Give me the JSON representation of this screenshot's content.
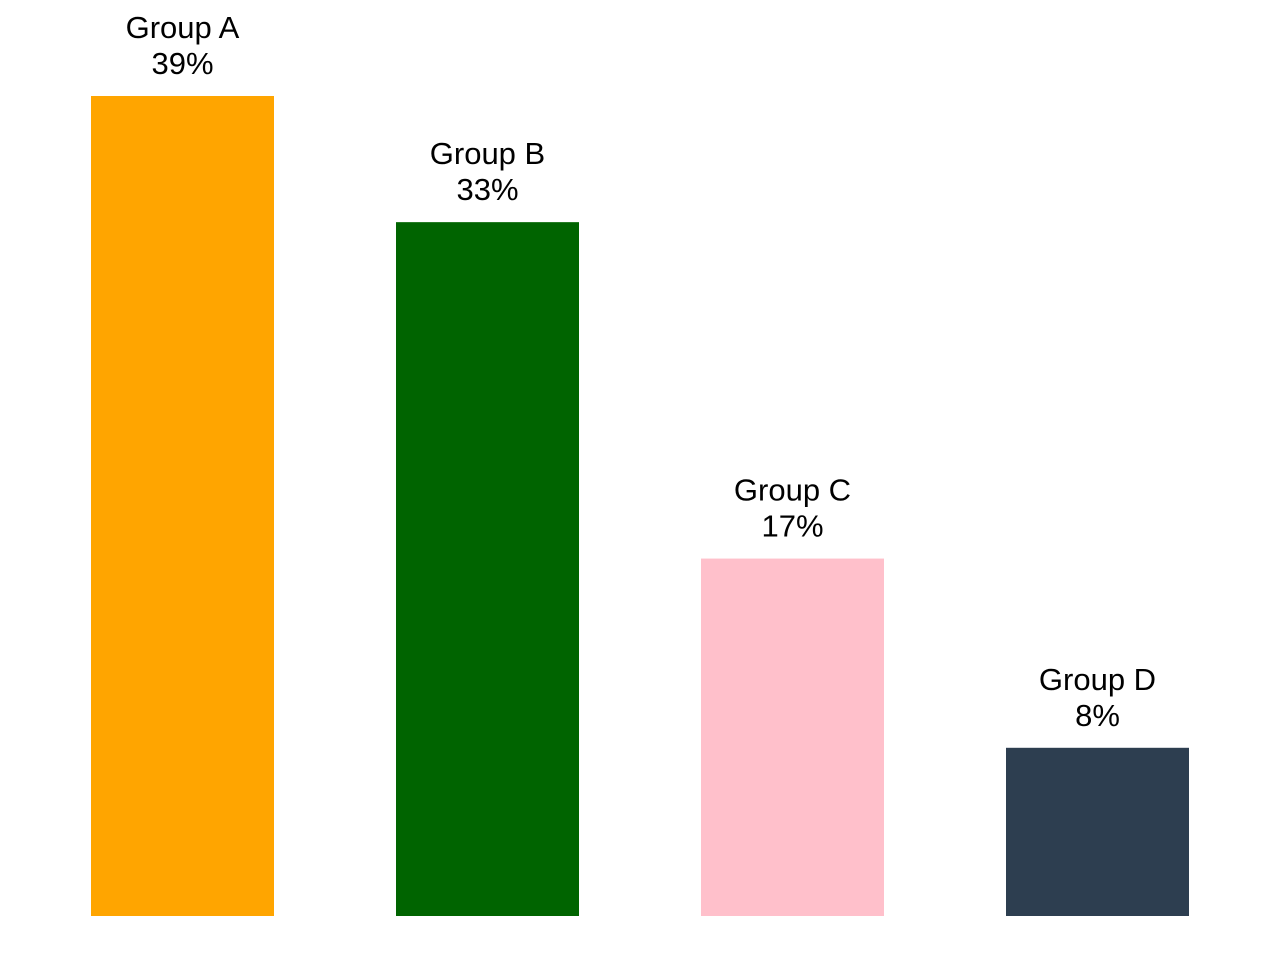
{
  "chart_data": {
    "type": "bar",
    "categories": [
      "Group A",
      "Group B",
      "Group C",
      "Group D"
    ],
    "values": [
      39,
      33,
      17,
      8
    ],
    "value_labels": [
      "39%",
      "33%",
      "17%",
      "8%"
    ],
    "unit": "%",
    "colors": [
      "#ffa500",
      "#006400",
      "#ffc0cb",
      "#2d3e50"
    ],
    "ylim": [
      0,
      39
    ],
    "grid": false,
    "legend": "none",
    "axes_visible": false
  }
}
